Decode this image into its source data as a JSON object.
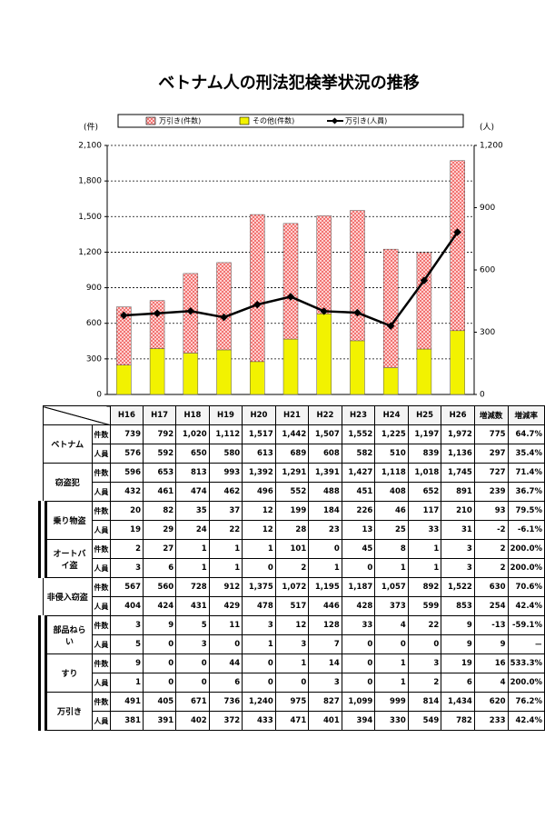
{
  "chart_data": {
    "type": "bar",
    "title": "ベトナム人の刑法犯検挙状況の推移",
    "y_unit": "(件)",
    "y2_unit": "(人)",
    "categories": [
      "H16",
      "H17",
      "H18",
      "H19",
      "H20",
      "H21",
      "H22",
      "H23",
      "H24",
      "H25",
      "H26"
    ],
    "series": [
      {
        "name": "万引き(件数)",
        "color": "#e8322e",
        "values": [
          491,
          405,
          671,
          736,
          1240,
          975,
          827,
          1099,
          999,
          814,
          1434
        ]
      },
      {
        "name": "その他(件数)",
        "color": "#f2f200",
        "values": [
          248,
          387,
          349,
          376,
          277,
          467,
          680,
          453,
          226,
          383,
          538
        ]
      },
      {
        "name": "万引き(人員)",
        "type": "line",
        "axis": "y2",
        "color": "#000000",
        "values": [
          381,
          391,
          402,
          372,
          433,
          471,
          401,
          394,
          330,
          549,
          782
        ]
      }
    ],
    "ylim": [
      0,
      2100
    ],
    "yticks": [
      0,
      300,
      600,
      900,
      {
        "value": 1200,
        "label": "1,200"
      },
      {
        "value": 1500,
        "label": "1,500"
      },
      {
        "value": 1800,
        "label": "1,800"
      },
      {
        "value": 2100,
        "label": "2,100"
      }
    ],
    "y2lim": [
      0,
      1200
    ],
    "y2ticks": [
      0,
      300,
      600,
      900,
      {
        "value": 1200,
        "label": "1,200"
      }
    ],
    "grid": true
  },
  "table": {
    "extra_columns": [
      "増減数",
      "増減率"
    ],
    "measures": [
      "件数",
      "人員"
    ],
    "rows": [
      {
        "label": "ベトナム",
        "cells": [
          [
            "739",
            "792",
            "1,020",
            "1,112",
            "1,517",
            "1,442",
            "1,507",
            "1,552",
            "1,225",
            "1,197",
            "1,972",
            "775",
            "64.7%"
          ],
          [
            "576",
            "592",
            "650",
            "580",
            "613",
            "689",
            "608",
            "582",
            "510",
            "839",
            "1,136",
            "297",
            "35.4%"
          ]
        ]
      },
      {
        "label": "窃盗犯",
        "cells": [
          [
            "596",
            "653",
            "813",
            "993",
            "1,392",
            "1,291",
            "1,391",
            "1,427",
            "1,118",
            "1,018",
            "1,745",
            "727",
            "71.4%"
          ],
          [
            "432",
            "461",
            "474",
            "462",
            "496",
            "552",
            "488",
            "451",
            "408",
            "652",
            "891",
            "239",
            "36.7%"
          ]
        ]
      },
      {
        "label": "乗り物盗",
        "cells": [
          [
            "20",
            "82",
            "35",
            "37",
            "12",
            "199",
            "184",
            "226",
            "46",
            "117",
            "210",
            "93",
            "79.5%"
          ],
          [
            "19",
            "29",
            "24",
            "22",
            "12",
            "28",
            "23",
            "13",
            "25",
            "33",
            "31",
            "-2",
            "-6.1%"
          ]
        ]
      },
      {
        "label": "オートバイ盗",
        "cells": [
          [
            "2",
            "27",
            "1",
            "1",
            "1",
            "101",
            "0",
            "45",
            "8",
            "1",
            "3",
            "2",
            "200.0%"
          ],
          [
            "3",
            "6",
            "1",
            "1",
            "0",
            "2",
            "1",
            "0",
            "1",
            "1",
            "3",
            "2",
            "200.0%"
          ]
        ]
      },
      {
        "label": "非侵入窃盗",
        "cells": [
          [
            "567",
            "560",
            "728",
            "912",
            "1,375",
            "1,072",
            "1,195",
            "1,187",
            "1,057",
            "892",
            "1,522",
            "630",
            "70.6%"
          ],
          [
            "404",
            "424",
            "431",
            "429",
            "478",
            "517",
            "446",
            "428",
            "373",
            "599",
            "853",
            "254",
            "42.4%"
          ]
        ]
      },
      {
        "label": "部品ねらい",
        "cells": [
          [
            "3",
            "9",
            "5",
            "11",
            "3",
            "12",
            "128",
            "33",
            "4",
            "22",
            "9",
            "-13",
            "-59.1%"
          ],
          [
            "5",
            "0",
            "3",
            "0",
            "1",
            "3",
            "7",
            "0",
            "0",
            "0",
            "9",
            "9",
            "－"
          ]
        ]
      },
      {
        "label": "すり",
        "cells": [
          [
            "9",
            "0",
            "0",
            "44",
            "0",
            "1",
            "14",
            "0",
            "1",
            "3",
            "19",
            "16",
            "533.3%"
          ],
          [
            "1",
            "0",
            "0",
            "6",
            "0",
            "0",
            "3",
            "0",
            "1",
            "2",
            "6",
            "4",
            "200.0%"
          ]
        ]
      },
      {
        "label": "万引き",
        "cells": [
          [
            "491",
            "405",
            "671",
            "736",
            "1,240",
            "975",
            "827",
            "1,099",
            "999",
            "814",
            "1,434",
            "620",
            "76.2%"
          ],
          [
            "381",
            "391",
            "402",
            "372",
            "433",
            "471",
            "401",
            "394",
            "330",
            "549",
            "782",
            "233",
            "42.4%"
          ]
        ]
      }
    ]
  }
}
